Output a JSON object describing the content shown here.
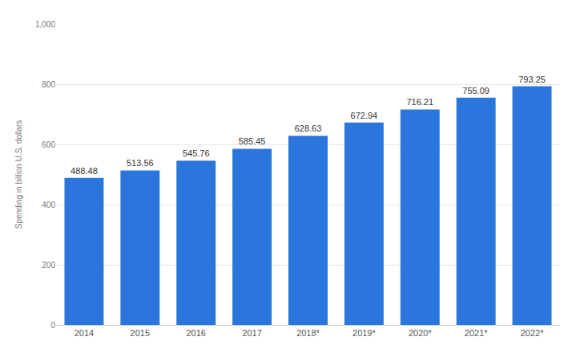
{
  "chart_data": {
    "type": "bar",
    "y_label": "Spending in billion U.S. dollars",
    "categories": [
      "2014",
      "2015",
      "2016",
      "2017",
      "2018*",
      "2019*",
      "2020*",
      "2021*",
      "2022*"
    ],
    "values": [
      488.48,
      513.56,
      545.76,
      585.45,
      628.63,
      672.94,
      716.21,
      755.09,
      793.25
    ],
    "color": "#2a76dd",
    "ylim": [
      0,
      1000
    ],
    "yticks": [
      0,
      200,
      400,
      600,
      800,
      {
        "value": 1000,
        "label": "1,000"
      }
    ],
    "grid": true,
    "data_labels": true
  }
}
